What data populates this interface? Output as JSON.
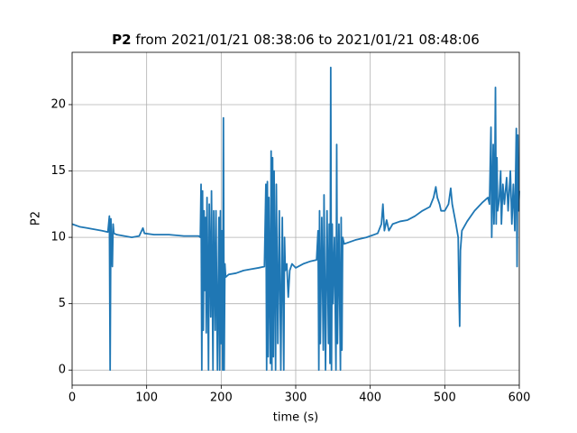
{
  "chart_data": {
    "type": "line",
    "title": [
      "P2",
      "from 2021/01/21 08:38:06 to 2021/01/21 08:48:06"
    ],
    "xlabel": "time (s)",
    "ylabel": "P2",
    "color": "#1f77b4",
    "grid": true,
    "xlim": [
      0,
      600
    ],
    "xticks": [
      0,
      100,
      200,
      300,
      400,
      500,
      600
    ],
    "ylim": [
      -1.14,
      23.94
    ],
    "yticks": [
      0,
      5,
      10,
      15,
      20
    ],
    "x": [
      0,
      10,
      20,
      30,
      40,
      48,
      50,
      51,
      52,
      54,
      55,
      56,
      60,
      70,
      80,
      90,
      95,
      97,
      110,
      130,
      150,
      170,
      172,
      173,
      174,
      175,
      176,
      177,
      178,
      179,
      180,
      181,
      183,
      184,
      186,
      187,
      189,
      190,
      192,
      193,
      195,
      197,
      198,
      199,
      200,
      201,
      202,
      203,
      204,
      205,
      206,
      210,
      220,
      230,
      240,
      250,
      258,
      260,
      261,
      262,
      263,
      264,
      266,
      267,
      268,
      269,
      270,
      271,
      273,
      274,
      276,
      278,
      280,
      282,
      284,
      285,
      286,
      288,
      290,
      292,
      295,
      300,
      310,
      320,
      328,
      330,
      331,
      332,
      333,
      335,
      337,
      338,
      340,
      342,
      344,
      345,
      346,
      347,
      348,
      349,
      350,
      352,
      354,
      355,
      356,
      358,
      360,
      361,
      362,
      363,
      365,
      380,
      395,
      410,
      415,
      417,
      419,
      422,
      425,
      430,
      440,
      450,
      460,
      470,
      480,
      485,
      488,
      490,
      493,
      495,
      500,
      505,
      508,
      510,
      515,
      518,
      519,
      520,
      521,
      523,
      530,
      540,
      550,
      558,
      560,
      562,
      563,
      565,
      566,
      567,
      568,
      569,
      570,
      571,
      573,
      575,
      576,
      578,
      580,
      583,
      585,
      588,
      590,
      592,
      594,
      596,
      597,
      598,
      599,
      600
    ],
    "values": [
      11,
      10.8,
      10.7,
      10.6,
      10.5,
      10.4,
      11.6,
      0,
      11.4,
      7.8,
      11,
      10.3,
      10.2,
      10.1,
      10.0,
      10.1,
      10.7,
      10.3,
      10.2,
      10.2,
      10.1,
      10.1,
      10.0,
      14,
      0,
      13.5,
      3,
      12,
      6,
      11.5,
      2.8,
      13,
      0,
      12.5,
      4,
      13.5,
      0,
      12,
      3,
      12,
      0,
      11.5,
      0,
      12,
      2,
      10.5,
      0,
      19,
      0,
      8,
      7,
      7.2,
      7.3,
      7.5,
      7.6,
      7.7,
      7.8,
      14,
      0,
      14.2,
      1,
      13,
      0.5,
      16.5,
      0,
      16,
      1,
      15,
      0,
      14,
      2,
      12,
      0,
      11.5,
      0,
      10,
      7.5,
      8,
      5.5,
      7.5,
      8,
      7.7,
      8,
      8.2,
      8.3,
      10.5,
      0,
      12,
      2,
      11.5,
      1.5,
      13.2,
      0,
      12,
      2,
      11,
      0.5,
      22.8,
      0,
      11,
      5,
      10,
      0,
      17,
      2,
      11,
      0,
      11.5,
      1.5,
      10,
      9.5,
      9.8,
      10,
      10.3,
      11,
      12.5,
      10.5,
      11.3,
      10.5,
      11,
      11.2,
      11.3,
      11.6,
      12,
      12.3,
      13,
      13.8,
      13,
      12.5,
      12,
      12,
      12.5,
      13.7,
      12.5,
      11,
      10,
      6,
      3.3,
      9,
      10.5,
      11.2,
      12,
      12.6,
      13,
      12.5,
      18.3,
      10,
      17,
      11,
      14,
      21.3,
      11,
      16,
      12,
      12.8,
      15,
      11,
      14,
      12.5,
      14.5,
      12,
      15,
      11,
      14,
      10.5,
      18.2,
      7.8,
      17.7,
      12,
      13.5
    ]
  }
}
